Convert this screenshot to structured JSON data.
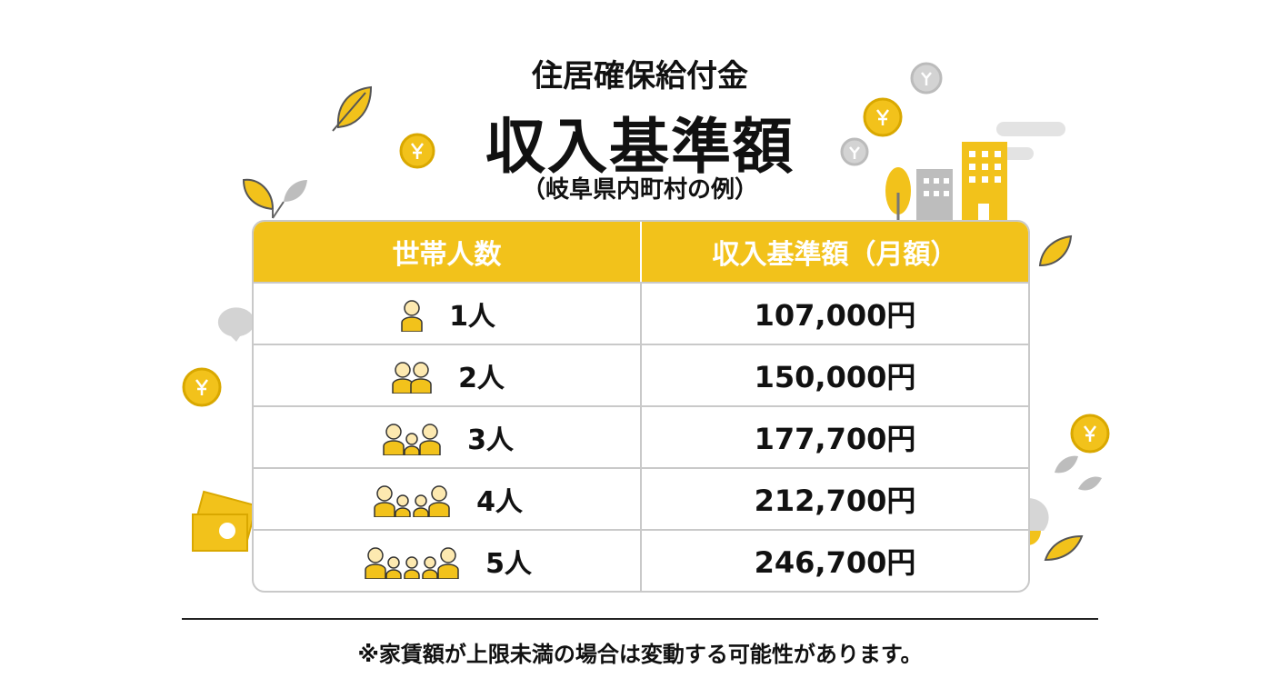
{
  "header": {
    "title": "住居確保給付金",
    "main": "収入基準額",
    "sub": "（岐阜県内町村の例）"
  },
  "table": {
    "headers": [
      "世帯人数",
      "収入基準額（月額）"
    ],
    "rows": [
      [
        "1人",
        "107,000円"
      ],
      [
        "2人",
        "150,000円"
      ],
      [
        "3人",
        "177,700円"
      ],
      [
        "4人",
        "212,700円"
      ],
      [
        "5人",
        "246,700円"
      ]
    ]
  },
  "footnote": "※家賃額が上限未満の場合は変動する可能性があります。"
}
